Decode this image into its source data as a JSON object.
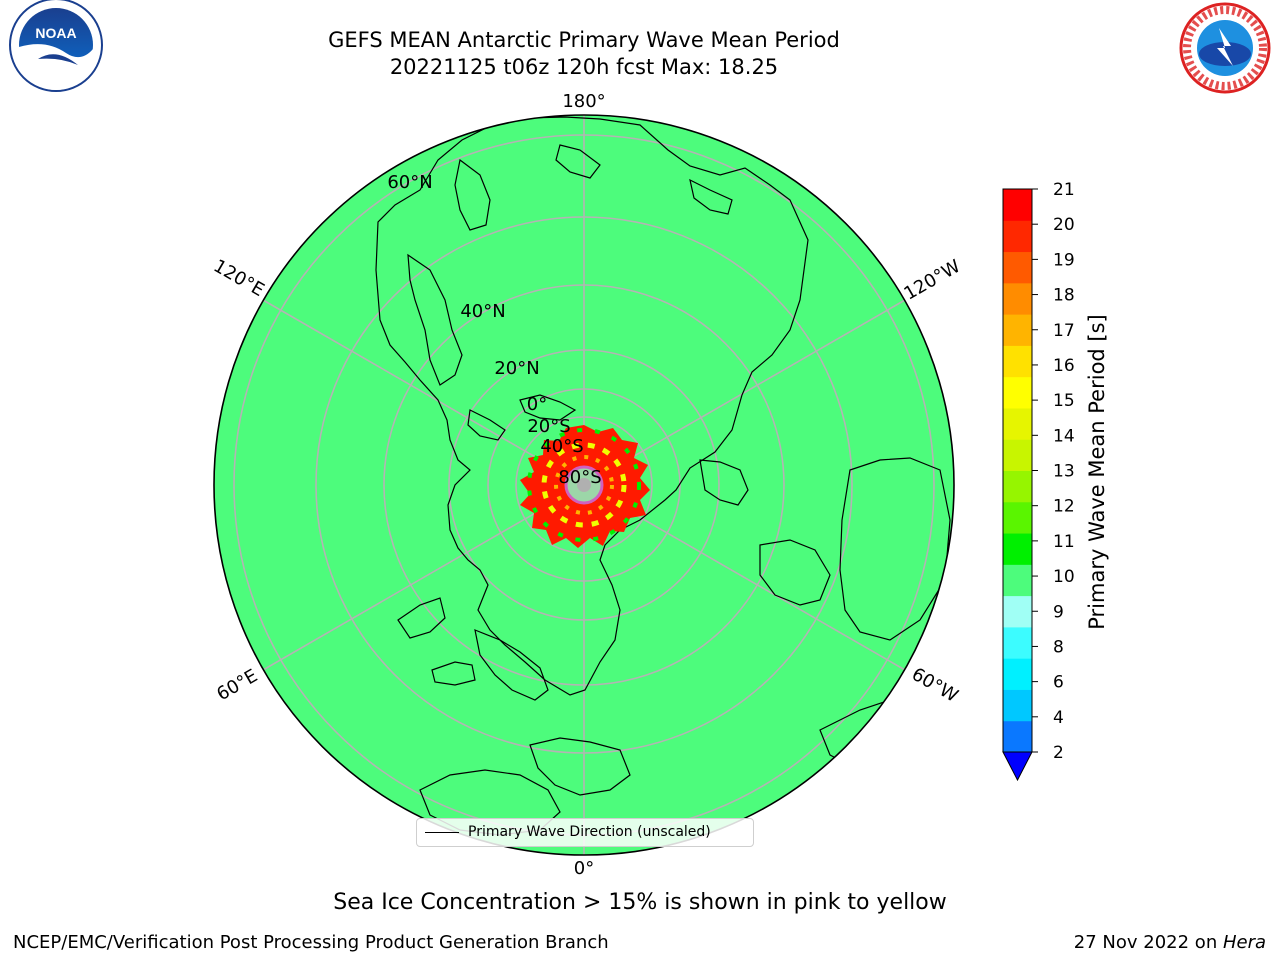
{
  "title": {
    "line1": "GEFS MEAN Antarctic Primary Wave Mean Period",
    "line2": "20221125 t06z 120h fcst   Max: 18.25"
  },
  "logos": {
    "left": "noaa-logo",
    "right": "national-weather-service-logo"
  },
  "map": {
    "projection": "polar-stereographic-south",
    "background_color": "#4dfc7c",
    "gridline_color": "#b4b4b4",
    "meridian_labels": [
      "180°",
      "120°E",
      "120°W",
      "60°E",
      "60°W",
      "0°"
    ],
    "parallel_labels": [
      "60°N",
      "40°N",
      "20°N",
      "0°",
      "20°S",
      "40°S",
      "80°S"
    ]
  },
  "colorbar": {
    "label": "Primary Wave Mean Period [s]",
    "ticks": [
      "2",
      "4",
      "6",
      "8",
      "9",
      "10",
      "11",
      "12",
      "13",
      "14",
      "15",
      "16",
      "17",
      "18",
      "19",
      "20",
      "21"
    ],
    "colors": [
      "#0a78ff",
      "#00c8ff",
      "#00f0ff",
      "#3cfcff",
      "#a0fff5",
      "#4dfc7c",
      "#00f000",
      "#5af500",
      "#96f500",
      "#c8f500",
      "#e6f500",
      "#ffff00",
      "#ffe100",
      "#ffb400",
      "#ff8c00",
      "#ff5a00",
      "#ff2800",
      "#ff0000"
    ],
    "under_color": "#0000ff"
  },
  "legend": {
    "entry": "Primary Wave Direction (unscaled)"
  },
  "note": "Sea Ice Concentration > 15% is shown in pink to yellow",
  "footer": {
    "left": "NCEP/EMC/Verification Post Processing Product Generation Branch",
    "date": "27 Nov 2022 on ",
    "machine": "Hera"
  }
}
